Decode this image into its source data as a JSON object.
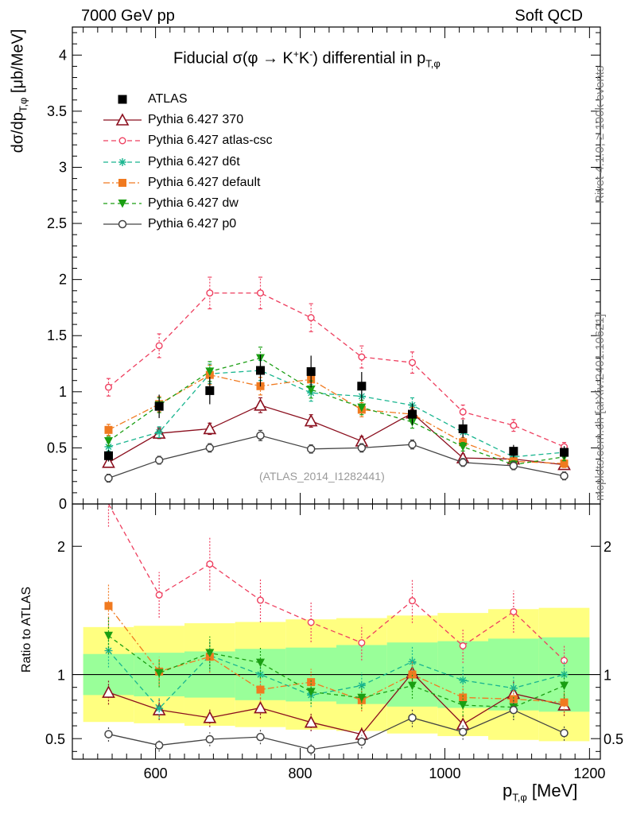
{
  "header": {
    "left": "7000 GeV pp",
    "right": "Soft QCD"
  },
  "side": {
    "rivet": "Rivet 4.1.0, ≥ 100k events",
    "mcplots": "mcplots.cern.ch [arXiv:2401.10621]"
  },
  "chart_data": {
    "type": "line",
    "title": "Fiducial σ(φ → K⁺K⁻) differential in p_T,φ",
    "title_main": "Fiducial σ(φ →  K",
    "title_sup1": "+",
    "title_k2": "K",
    "title_sup2": "-",
    "title_end": ") differential in p",
    "title_sub": "T,φ",
    "analysis_label": "(ATLAS_2014_I1282441)",
    "xlabel": "p",
    "xlabel_sub": "T,φ",
    "xlabel_unit": "[MeV]",
    "ylabel": "dσ/dp",
    "ylabel_sub": "T,φ",
    "ylabel_unit": "[μb/MeV]",
    "ratio_ylabel": "Ratio to ATLAS",
    "xlim": [
      485,
      1215
    ],
    "ylim": [
      0,
      4.25
    ],
    "ratio_ylim": [
      0.34,
      2.33
    ],
    "x_ticks": [
      600,
      800,
      1000,
      1200
    ],
    "x_tick_labels": [
      "600",
      "800",
      "1000",
      "1200"
    ],
    "y_ticks": [
      0,
      0.5,
      1,
      1.5,
      2,
      2.5,
      3,
      3.5,
      4
    ],
    "y_tick_labels": [
      "0",
      "0.5",
      "1",
      "1.5",
      "2",
      "2.5",
      "3",
      "3.5",
      "4"
    ],
    "ratio_ticks": [
      0.5,
      1,
      2
    ],
    "ratio_tick_labels": [
      "0.5",
      "1",
      "2"
    ],
    "x": [
      535,
      605,
      675,
      745,
      815,
      885,
      955,
      1025,
      1095,
      1165
    ],
    "x_edges": [
      500,
      570,
      640,
      710,
      780,
      850,
      920,
      990,
      1060,
      1130,
      1200
    ],
    "data": {
      "name": "ATLAS",
      "values": [
        0.43,
        0.87,
        1.01,
        1.19,
        1.18,
        1.05,
        0.8,
        0.67,
        0.47,
        0.46
      ],
      "band_inner": [
        0.16,
        0.17,
        0.18,
        0.2,
        0.21,
        0.23,
        0.25,
        0.26,
        0.28,
        0.29
      ],
      "band_outer": [
        0.37,
        0.38,
        0.4,
        0.41,
        0.43,
        0.44,
        0.46,
        0.48,
        0.51,
        0.52
      ]
    },
    "series": [
      {
        "name": "Pythia 6.427 370",
        "color": "#8b0f1e",
        "dash": "",
        "marker": "triangle-open",
        "values": [
          0.37,
          0.63,
          0.67,
          0.88,
          0.74,
          0.56,
          0.81,
          0.41,
          0.4,
          0.35
        ]
      },
      {
        "name": "Pythia 6.427 atlas-csc",
        "color": "#ee3f5f",
        "dash": "6,4",
        "marker": "circle-open-small",
        "values": [
          1.04,
          1.41,
          1.88,
          1.88,
          1.66,
          1.31,
          1.26,
          0.82,
          0.7,
          0.51
        ]
      },
      {
        "name": "Pythia 6.427 d6t",
        "color": "#19b58f",
        "dash": "6,4",
        "marker": "star",
        "values": [
          0.51,
          0.64,
          1.16,
          1.19,
          0.99,
          0.96,
          0.88,
          0.64,
          0.42,
          0.46
        ]
      },
      {
        "name": "Pythia 6.427 default",
        "color": "#f07a20",
        "dash": "8,3,2,3",
        "marker": "square",
        "values": [
          0.66,
          0.89,
          1.15,
          1.05,
          1.11,
          0.84,
          0.8,
          0.55,
          0.38,
          0.36
        ]
      },
      {
        "name": "Pythia 6.427 dw",
        "color": "#1a9e12",
        "dash": "5,4",
        "marker": "triangle-down",
        "values": [
          0.56,
          0.88,
          1.18,
          1.3,
          1.02,
          0.86,
          0.73,
          0.51,
          0.35,
          0.42
        ]
      },
      {
        "name": "Pythia 6.427 p0",
        "color": "#444444",
        "dash": "",
        "marker": "circle-open",
        "values": [
          0.23,
          0.39,
          0.5,
          0.61,
          0.49,
          0.5,
          0.53,
          0.37,
          0.34,
          0.25
        ]
      }
    ],
    "legend": [
      "ATLAS",
      "Pythia 6.427 370",
      "Pythia 6.427 atlas-csc",
      "Pythia 6.427 d6t",
      "Pythia 6.427 default",
      "Pythia 6.427 dw",
      "Pythia 6.427 p0"
    ],
    "legend_placement": "top-left"
  }
}
